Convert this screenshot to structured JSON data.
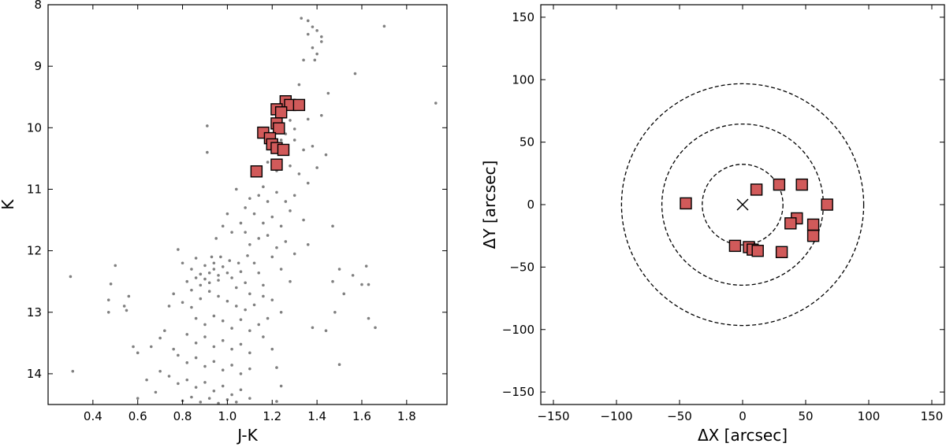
{
  "chart_data": [
    {
      "type": "scatter",
      "xlabel": "J-K",
      "ylabel": "K",
      "xlim": [
        0.2,
        1.98
      ],
      "ylim": [
        14.5,
        8.0
      ],
      "y_inverted": true,
      "xticks": [
        0.4,
        0.6,
        0.8,
        1.0,
        1.2,
        1.4,
        1.6,
        1.8
      ],
      "xtick_labels": [
        "0.4",
        "0.6",
        "0.8",
        "1.0",
        "1.2",
        "1.4",
        "1.6",
        "1.8"
      ],
      "yticks": [
        8,
        9,
        10,
        11,
        12,
        13,
        14
      ],
      "ytick_labels": [
        "8",
        "9",
        "10",
        "11",
        "12",
        "13",
        "14"
      ],
      "grid": false,
      "series": [
        {
          "role": "field stars",
          "marker": "dot",
          "color": "#808080",
          "points": [
            [
              1.33,
              8.22
            ],
            [
              1.36,
              8.26
            ],
            [
              1.38,
              8.36
            ],
            [
              1.4,
              8.42
            ],
            [
              1.36,
              8.48
            ],
            [
              1.42,
              8.52
            ],
            [
              1.38,
              8.7
            ],
            [
              1.4,
              8.8
            ],
            [
              1.34,
              8.9
            ],
            [
              1.39,
              8.9
            ],
            [
              1.42,
              8.6
            ],
            [
              1.7,
              8.35
            ],
            [
              1.93,
              9.6
            ],
            [
              1.57,
              9.12
            ],
            [
              1.45,
              9.44
            ],
            [
              1.32,
              9.3
            ],
            [
              1.3,
              9.55
            ],
            [
              1.34,
              9.7
            ],
            [
              1.36,
              9.86
            ],
            [
              1.42,
              9.8
            ],
            [
              1.2,
              9.78
            ],
            [
              1.24,
              9.6
            ],
            [
              1.28,
              9.88
            ],
            [
              1.3,
              10.02
            ],
            [
              1.26,
              10.1
            ],
            [
              1.3,
              10.2
            ],
            [
              1.34,
              10.36
            ],
            [
              1.38,
              10.3
            ],
            [
              1.24,
              10.2
            ],
            [
              1.2,
              10.4
            ],
            [
              1.18,
              10.56
            ],
            [
              1.22,
              10.7
            ],
            [
              1.28,
              10.62
            ],
            [
              1.32,
              10.75
            ],
            [
              1.36,
              10.9
            ],
            [
              1.4,
              10.65
            ],
            [
              1.16,
              10.96
            ],
            [
              1.14,
              11.1
            ],
            [
              1.18,
              11.2
            ],
            [
              1.22,
              11.05
            ],
            [
              1.26,
              11.2
            ],
            [
              1.3,
              11.1
            ],
            [
              1.12,
              11.4
            ],
            [
              1.16,
              11.55
            ],
            [
              1.2,
              11.45
            ],
            [
              1.24,
              11.6
            ],
            [
              1.28,
              11.35
            ],
            [
              1.34,
              11.5
            ],
            [
              1.08,
              11.7
            ],
            [
              1.1,
              11.9
            ],
            [
              1.14,
              11.8
            ],
            [
              1.18,
              11.75
            ],
            [
              1.22,
              11.95
            ],
            [
              1.26,
              11.85
            ],
            [
              1.3,
              12.05
            ],
            [
              1.36,
              11.9
            ],
            [
              0.91,
              9.97
            ],
            [
              0.91,
              10.4
            ],
            [
              1.0,
              11.4
            ],
            [
              1.04,
              11.0
            ],
            [
              1.44,
              10.44
            ],
            [
              1.47,
              11.6
            ],
            [
              1.5,
              12.3
            ],
            [
              1.56,
              12.4
            ],
            [
              1.62,
              12.25
            ],
            [
              1.63,
              12.55
            ],
            [
              1.52,
              12.7
            ],
            [
              1.47,
              12.5
            ],
            [
              1.48,
              13.0
            ],
            [
              1.44,
              13.3
            ],
            [
              1.66,
              13.25
            ],
            [
              1.63,
              13.1
            ],
            [
              1.6,
              12.55
            ],
            [
              1.5,
              13.85
            ],
            [
              1.38,
              13.25
            ],
            [
              0.78,
              11.98
            ],
            [
              0.8,
              12.2
            ],
            [
              0.84,
              12.3
            ],
            [
              0.86,
              12.12
            ],
            [
              0.88,
              12.38
            ],
            [
              0.9,
              12.24
            ],
            [
              0.92,
              12.36
            ],
            [
              0.94,
              12.3
            ],
            [
              0.96,
              12.4
            ],
            [
              0.98,
              12.26
            ],
            [
              0.9,
              12.46
            ],
            [
              0.92,
              12.52
            ],
            [
              0.96,
              12.48
            ],
            [
              1.0,
              12.36
            ],
            [
              1.02,
              12.44
            ],
            [
              0.94,
              12.2
            ],
            [
              0.88,
              12.56
            ],
            [
              0.86,
              12.44
            ],
            [
              0.84,
              12.64
            ],
            [
              0.82,
              12.5
            ],
            [
              1.04,
              12.6
            ],
            [
              1.06,
              12.34
            ],
            [
              1.08,
              12.52
            ],
            [
              1.1,
              12.7
            ],
            [
              1.12,
              12.2
            ],
            [
              1.14,
              12.36
            ],
            [
              1.16,
              12.56
            ],
            [
              0.76,
              12.7
            ],
            [
              0.74,
              12.9
            ],
            [
              0.8,
              12.84
            ],
            [
              0.84,
              12.92
            ],
            [
              0.88,
              12.78
            ],
            [
              0.92,
              12.66
            ],
            [
              0.96,
              12.74
            ],
            [
              1.0,
              12.82
            ],
            [
              1.04,
              12.9
            ],
            [
              1.08,
              12.96
            ],
            [
              1.12,
              12.88
            ],
            [
              1.16,
              12.74
            ],
            [
              0.86,
              13.1
            ],
            [
              0.9,
              13.2
            ],
            [
              0.94,
              13.06
            ],
            [
              0.98,
              13.14
            ],
            [
              1.02,
              13.26
            ],
            [
              1.06,
              13.12
            ],
            [
              1.1,
              13.3
            ],
            [
              1.14,
              13.2
            ],
            [
              0.82,
              13.36
            ],
            [
              0.86,
              13.5
            ],
            [
              0.9,
              13.4
            ],
            [
              0.94,
              13.56
            ],
            [
              0.98,
              13.46
            ],
            [
              1.02,
              13.6
            ],
            [
              1.06,
              13.52
            ],
            [
              1.1,
              13.66
            ],
            [
              0.78,
              13.7
            ],
            [
              0.82,
              13.82
            ],
            [
              0.86,
              13.74
            ],
            [
              0.9,
              13.88
            ],
            [
              0.94,
              13.8
            ],
            [
              0.98,
              13.94
            ],
            [
              1.02,
              13.86
            ],
            [
              1.06,
              14.0
            ],
            [
              1.1,
              13.92
            ],
            [
              0.74,
              14.04
            ],
            [
              0.78,
              14.16
            ],
            [
              0.82,
              14.1
            ],
            [
              0.86,
              14.22
            ],
            [
              0.9,
              14.14
            ],
            [
              0.94,
              14.28
            ],
            [
              0.98,
              14.2
            ],
            [
              1.02,
              14.34
            ],
            [
              1.06,
              14.26
            ],
            [
              1.1,
              14.4
            ],
            [
              0.8,
              14.44
            ],
            [
              0.84,
              14.38
            ],
            [
              0.88,
              14.46
            ],
            [
              0.92,
              14.4
            ],
            [
              0.96,
              14.48
            ],
            [
              1.0,
              14.42
            ],
            [
              1.04,
              14.46
            ],
            [
              0.7,
              13.96
            ],
            [
              0.68,
              14.3
            ],
            [
              0.64,
              14.1
            ],
            [
              0.66,
              13.56
            ],
            [
              0.6,
              13.66
            ],
            [
              0.58,
              13.56
            ],
            [
              0.6,
              14.4
            ],
            [
              0.72,
              13.3
            ],
            [
              0.7,
              13.42
            ],
            [
              0.76,
              13.6
            ],
            [
              0.5,
              12.24
            ],
            [
              0.48,
              12.54
            ],
            [
              0.47,
              12.8
            ],
            [
              0.47,
              13.0
            ],
            [
              0.54,
              12.9
            ],
            [
              0.56,
              12.74
            ],
            [
              0.55,
              12.97
            ],
            [
              0.3,
              12.42
            ],
            [
              0.31,
              13.96
            ],
            [
              0.95,
              11.8
            ],
            [
              0.98,
              11.6
            ],
            [
              1.02,
              11.7
            ],
            [
              1.06,
              11.55
            ],
            [
              1.08,
              11.3
            ],
            [
              1.1,
              11.15
            ],
            [
              0.93,
              12.1
            ],
            [
              0.97,
              12.1
            ],
            [
              1.01,
              12.16
            ],
            [
              1.05,
              12.2
            ],
            [
              1.09,
              12.08
            ],
            [
              1.2,
              12.1
            ],
            [
              1.24,
              12.3
            ],
            [
              1.28,
              12.5
            ],
            [
              1.2,
              12.8
            ],
            [
              1.24,
              13.0
            ],
            [
              1.18,
              13.1
            ],
            [
              1.16,
              13.4
            ],
            [
              1.2,
              13.6
            ],
            [
              1.22,
              13.9
            ],
            [
              1.24,
              14.2
            ],
            [
              1.22,
              14.45
            ]
          ]
        },
        {
          "role": "selected stars",
          "marker": "square",
          "color": "#d15a5a",
          "edgecolor": "#000000",
          "points": [
            [
              1.26,
              9.57
            ],
            [
              1.28,
              9.63
            ],
            [
              1.32,
              9.63
            ],
            [
              1.22,
              9.7
            ],
            [
              1.24,
              9.75
            ],
            [
              1.22,
              9.93
            ],
            [
              1.23,
              10.01
            ],
            [
              1.16,
              10.08
            ],
            [
              1.19,
              10.17
            ],
            [
              1.2,
              10.27
            ],
            [
              1.22,
              10.33
            ],
            [
              1.25,
              10.36
            ],
            [
              1.22,
              10.6
            ],
            [
              1.13,
              10.71
            ]
          ]
        }
      ]
    },
    {
      "type": "scatter",
      "xlabel": "ΔX [arcsec]",
      "ylabel": "ΔY [arcsec]",
      "xlim": [
        -160,
        160
      ],
      "ylim": [
        -160,
        160
      ],
      "xticks": [
        -150,
        -100,
        -50,
        0,
        50,
        100,
        150
      ],
      "xtick_labels": [
        "−150",
        "−100",
        "−50",
        "0",
        "50",
        "100",
        "150"
      ],
      "yticks": [
        -150,
        -100,
        -50,
        0,
        50,
        100,
        150
      ],
      "ytick_labels": [
        "−150",
        "−100",
        "−50",
        "0",
        "50",
        "100",
        "150"
      ],
      "grid": false,
      "center_marker": {
        "x": 0,
        "y": 0,
        "marker": "x"
      },
      "circles": [
        {
          "radius": 32,
          "style": "dashed"
        },
        {
          "radius": 64,
          "style": "dashed"
        },
        {
          "radius": 96,
          "style": "dashed"
        }
      ],
      "series": [
        {
          "role": "selected stars",
          "marker": "square",
          "color": "#d15a5a",
          "edgecolor": "#000000",
          "points": [
            [
              -45,
              1
            ],
            [
              11,
              12
            ],
            [
              29,
              16
            ],
            [
              47,
              16
            ],
            [
              67,
              0
            ],
            [
              43,
              -11
            ],
            [
              38,
              -15
            ],
            [
              56,
              -16
            ],
            [
              56,
              -25
            ],
            [
              -6,
              -33
            ],
            [
              5,
              -34
            ],
            [
              8,
              -36
            ],
            [
              12,
              -37
            ],
            [
              31,
              -38
            ]
          ]
        }
      ]
    }
  ]
}
